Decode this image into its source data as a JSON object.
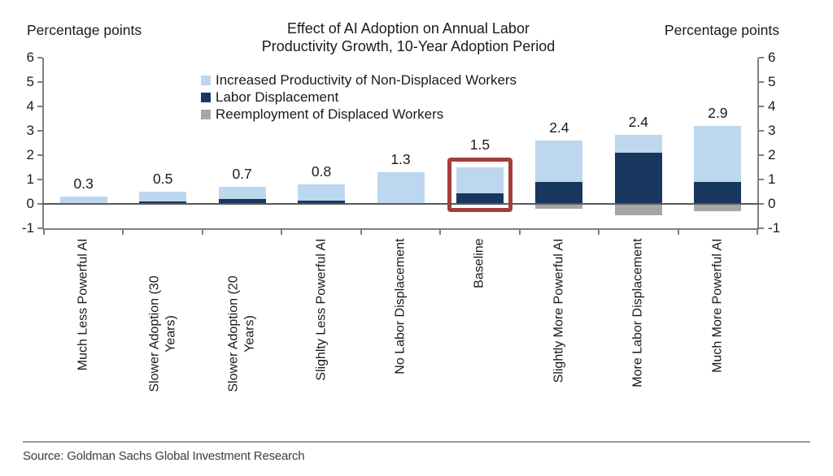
{
  "chart_data": {
    "type": "bar",
    "stacked": true,
    "title": "Effect of AI Adoption on Annual Labor\nProductivity Growth, 10-Year Adoption Period",
    "left_axis_label": "Percentage points",
    "right_axis_label": "Percentage points",
    "ylim": [
      -1,
      6
    ],
    "yticks": [
      6,
      5,
      4,
      3,
      2,
      1,
      0,
      -1
    ],
    "grid": false,
    "legend_position": "top-center",
    "categories": [
      "Much Less Powerful AI",
      "Slower Adoption (30\nYears)",
      "Slower Adoption (20\nYears)",
      "Slighlty Less Powerful AI",
      "No Labor Displacement",
      "Baseline",
      "Slightly More Powerful AI",
      "More Labor Displacement",
      "Much More Powerful AI"
    ],
    "series": [
      {
        "name": "Increased Productivity of Non-Displaced Workers",
        "color": "#BDD7EE",
        "values": [
          0.3,
          0.4,
          0.5,
          0.65,
          1.3,
          1.05,
          1.7,
          0.75,
          2.3
        ]
      },
      {
        "name": "Labor Displacement",
        "color": "#17375E",
        "values": [
          0,
          0.1,
          0.2,
          0.15,
          0,
          0.45,
          0.9,
          2.1,
          0.9
        ]
      },
      {
        "name": "Reemployment of Displaced Workers",
        "color": "#A6A6A6",
        "values": [
          0,
          0,
          0,
          0,
          0,
          0,
          -0.2,
          -0.45,
          -0.3
        ]
      }
    ],
    "bar_total_labels": [
      "0.3",
      "0.5",
      "0.7",
      "0.8",
      "1.3",
      "1.5",
      "2.4",
      "2.4",
      "2.9"
    ],
    "highlight": {
      "category": "Baseline",
      "category_index": 5,
      "color": "#A43E38"
    },
    "axis_color": "#808080"
  },
  "footer": {
    "source": "Source: Goldman Sachs Global Investment Research"
  }
}
